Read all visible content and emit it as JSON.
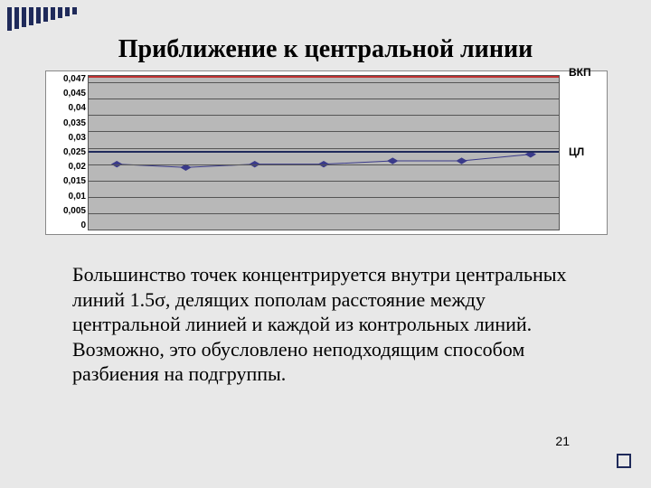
{
  "decoration": {
    "corner_bar_color": "#1f2a5a",
    "corner_bar_heights": [
      26,
      24,
      22,
      20,
      18,
      16,
      14,
      12,
      10,
      8
    ]
  },
  "title": "Приближение к центральной линии",
  "chart": {
    "type": "line",
    "background_outer": "#ffffff",
    "background_plot": "#b8b8b8",
    "grid_color": "#555555",
    "ylim": [
      0,
      0.047
    ],
    "y_ticks": [
      0.047,
      0.045,
      0.04,
      0.035,
      0.03,
      0.025,
      0.02,
      0.015,
      0.01,
      0.005,
      0
    ],
    "y_tick_labels": [
      "0,047",
      "0,045",
      "0,04",
      "0,035",
      "0,03",
      "0,025",
      "0,02",
      "0,015",
      "0,01",
      "0,005",
      "0"
    ],
    "y_label_fontsize": 10,
    "control_lines": [
      {
        "id": "vkp",
        "value": 0.047,
        "label": "ВКП",
        "color": "#c03030",
        "width": 2
      },
      {
        "id": "cl",
        "value": 0.024,
        "label": "ЦЛ",
        "color": "#1f2a5a",
        "width": 2
      }
    ],
    "right_label_fontsize": 12,
    "data": {
      "color": "#3a3a8a",
      "marker": "diamond",
      "marker_size": 6,
      "line_width": 1,
      "x_count": 7,
      "y": [
        0.02,
        0.019,
        0.02,
        0.02,
        0.021,
        0.021,
        0.023
      ]
    }
  },
  "body_text": "Большинство точек концентрируется внутри центральных линий 1.5σ, делящих пополам расстояние между центральной линией и каждой из контрольных линий. Возможно, это обусловлено неподходящим способом разбиения на подгруппы.",
  "page_number": "21"
}
